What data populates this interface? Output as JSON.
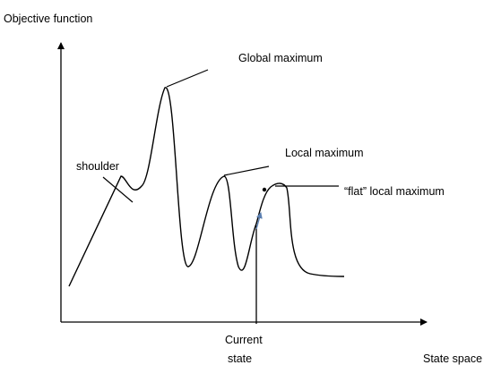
{
  "axes": {
    "y_label": "Objective function",
    "x_label": "State space"
  },
  "annotations": {
    "global_maximum": "Global maximum",
    "local_maximum": "Local maximum",
    "shoulder": "shoulder",
    "flat_local_maximum": "“flat” local maximum",
    "current_state_line1": "Current",
    "current_state_line2": "state"
  },
  "colors": {
    "stroke": "#000000",
    "current_state_arrow": "#5b7fb0"
  }
}
